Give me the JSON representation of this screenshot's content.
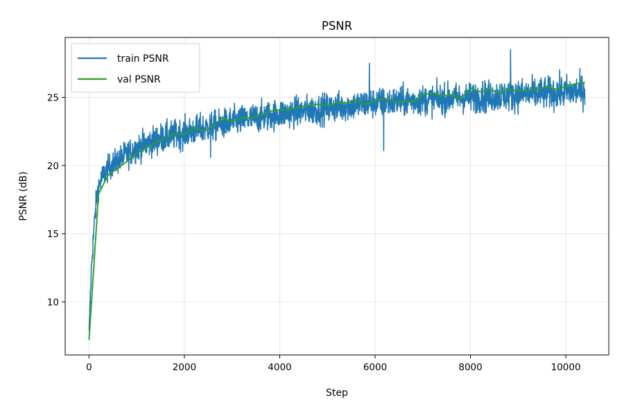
{
  "chart_data": {
    "type": "line",
    "title": "PSNR",
    "xlabel": "Step",
    "ylabel": "PSNR (dB)",
    "xlim": [
      -500,
      10900
    ],
    "ylim": [
      6.1,
      29.4
    ],
    "xticks": [
      0,
      2000,
      4000,
      6000,
      8000,
      10000
    ],
    "yticks": [
      10,
      15,
      20,
      25
    ],
    "grid": true,
    "legend_position": "top-left",
    "series": [
      {
        "name": "train PSNR",
        "color": "#1f77b4",
        "style": "noisy",
        "x": [
          0,
          50,
          100,
          150,
          200,
          300,
          400,
          500,
          700,
          1000,
          1500,
          2000,
          2500,
          3000,
          3500,
          4000,
          4500,
          5000,
          5500,
          6000,
          6500,
          7000,
          7500,
          8000,
          8500,
          9000,
          9500,
          10000,
          10400
        ],
        "y": [
          7.5,
          12.5,
          15.2,
          17.3,
          18.5,
          19.3,
          19.8,
          20.1,
          20.6,
          21.3,
          22.0,
          22.4,
          22.8,
          23.2,
          23.5,
          23.8,
          24.0,
          24.2,
          24.4,
          24.6,
          24.7,
          24.8,
          24.9,
          25.0,
          25.1,
          25.2,
          25.3,
          25.4,
          25.5
        ],
        "spread": [
          1.0,
          1.0,
          1.2,
          1.2,
          1.2,
          1.2,
          1.2,
          1.2,
          1.3,
          1.3,
          1.4,
          1.4,
          1.4,
          1.4,
          1.4,
          1.4,
          1.4,
          1.4,
          1.4,
          1.4,
          1.4,
          1.4,
          1.4,
          1.4,
          1.5,
          1.5,
          1.5,
          1.5,
          1.5
        ],
        "spikes": [
          {
            "x": 8840,
            "y": 28.5
          },
          {
            "x": 5880,
            "y": 27.5
          },
          {
            "x": 6180,
            "y": 21.1
          },
          {
            "x": 8330,
            "y": 23.9
          },
          {
            "x": 2550,
            "y": 20.6
          }
        ]
      },
      {
        "name": "val PSNR",
        "color": "#2ca02c",
        "style": "line",
        "x": [
          0,
          200,
          400,
          600,
          800,
          1000,
          1200,
          1400,
          1600,
          1800,
          2000,
          2200,
          2400,
          2600,
          2800,
          3000,
          3200,
          3400,
          3600,
          3800,
          4000,
          4200,
          4400,
          4600,
          4800,
          5000,
          5200,
          5400,
          5600,
          5800,
          6000,
          6200,
          6400,
          6600,
          6800,
          7000,
          7200,
          7400,
          7600,
          7800,
          8000,
          8200,
          8400,
          8600,
          8800,
          9000,
          9200,
          9400,
          9600,
          9800,
          10000,
          10200,
          10400
        ],
        "y": [
          7.2,
          17.9,
          19.3,
          19.8,
          20.3,
          20.9,
          21.3,
          21.7,
          22.0,
          22.3,
          22.3,
          22.8,
          22.5,
          22.9,
          23.5,
          23.2,
          23.5,
          23.5,
          23.7,
          24.0,
          24.1,
          24.1,
          24.3,
          24.4,
          24.5,
          24.4,
          24.6,
          24.6,
          24.8,
          24.5,
          24.8,
          24.9,
          24.7,
          24.7,
          24.7,
          25.2,
          25.3,
          25.1,
          25.2,
          24.9,
          25.7,
          25.4,
          25.6,
          25.3,
          25.6,
          25.5,
          25.5,
          25.6,
          25.8,
          25.6,
          25.8,
          26.0,
          26.1
        ]
      }
    ]
  }
}
